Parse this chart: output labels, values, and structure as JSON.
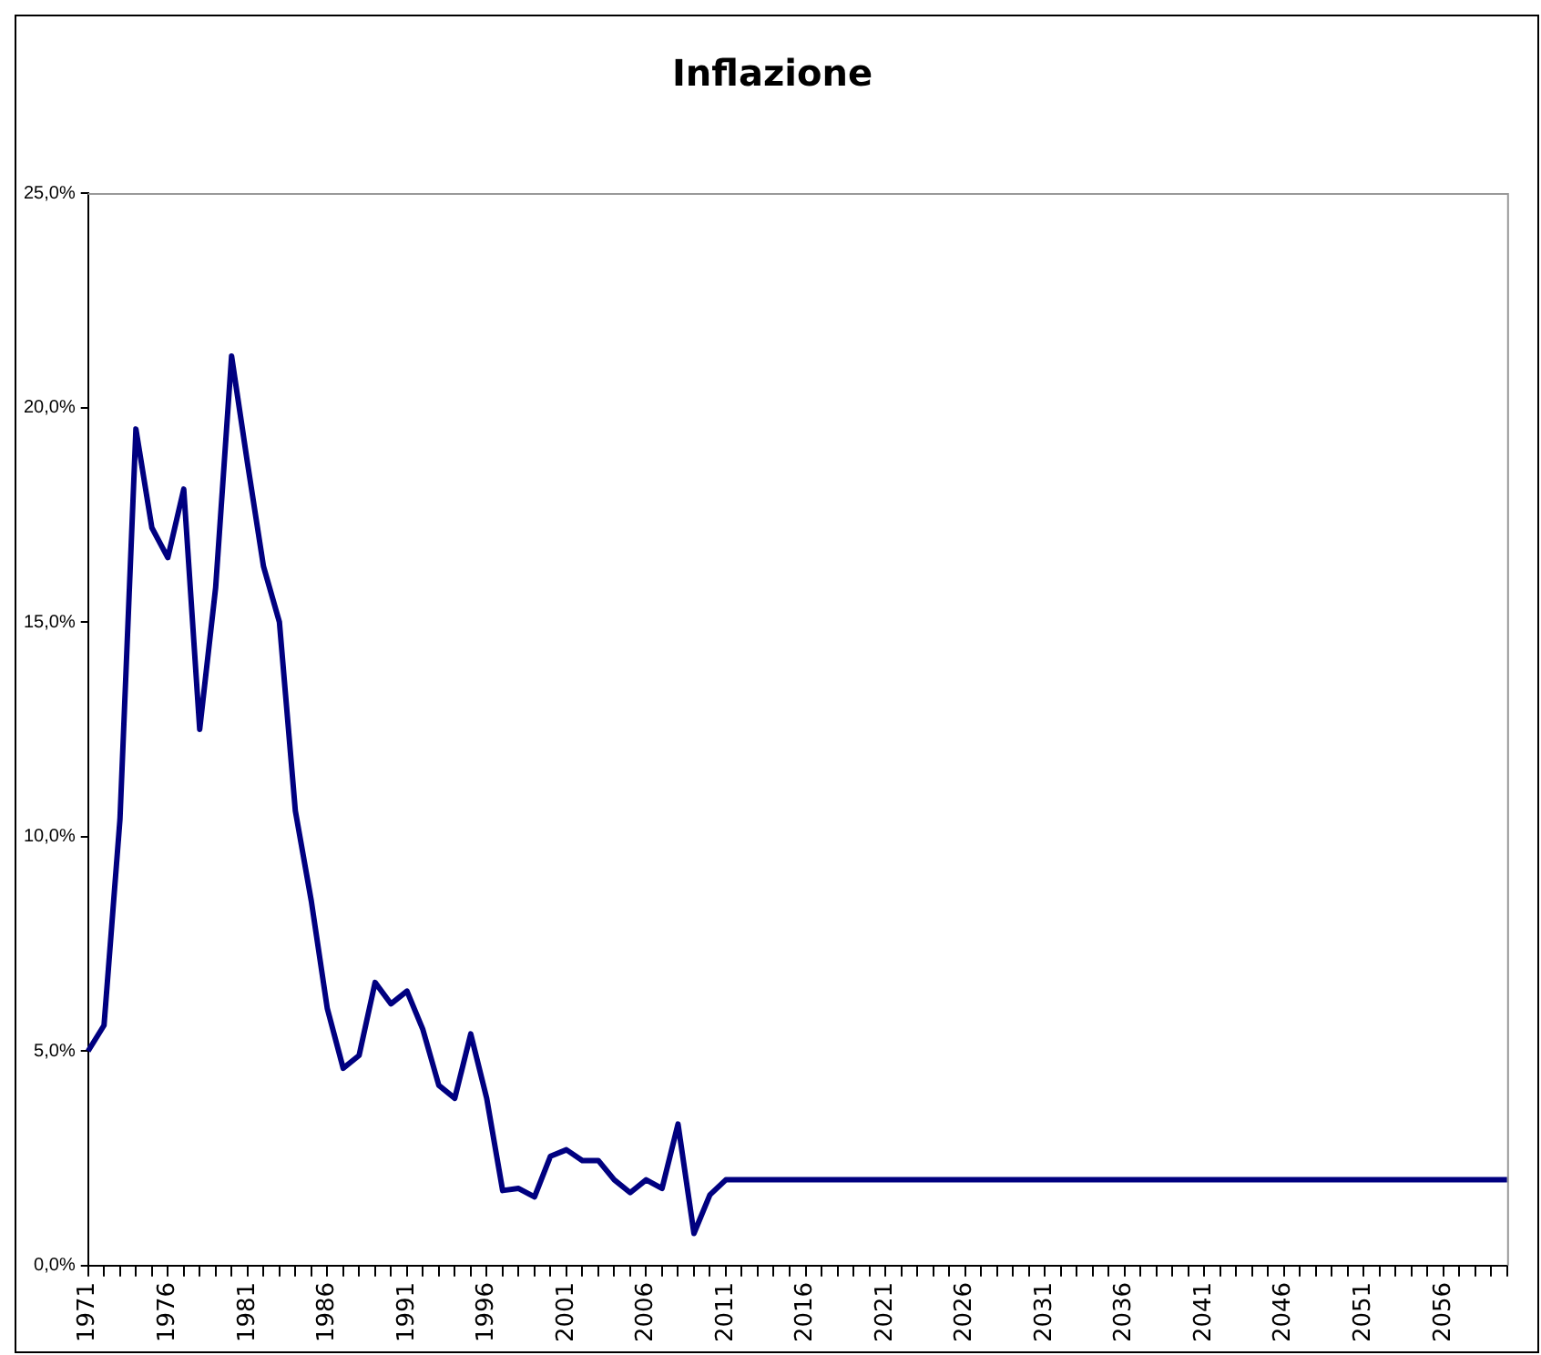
{
  "chart_data": {
    "type": "line",
    "title": "Inflazione",
    "categories": [
      "1971",
      null,
      null,
      null,
      null,
      "1976",
      null,
      null,
      null,
      null,
      "1981",
      null,
      null,
      null,
      null,
      "1986",
      null,
      null,
      null,
      null,
      "1991",
      null,
      null,
      null,
      null,
      "1996",
      null,
      null,
      null,
      null,
      "2001",
      null,
      null,
      null,
      null,
      "2006",
      null,
      null,
      null,
      null,
      "2011",
      null,
      null,
      null,
      null,
      "2016",
      null,
      null,
      null,
      null,
      "2021",
      null,
      null,
      null,
      null,
      "2026",
      null,
      null,
      null,
      null,
      "2031",
      null,
      null,
      null,
      null,
      "2036",
      null,
      null,
      null,
      null,
      "2041",
      null,
      null,
      null,
      null,
      "2046",
      null,
      null,
      null,
      null,
      "2051",
      null,
      null,
      null,
      null,
      "2056",
      null,
      null,
      null,
      null
    ],
    "series": [
      {
        "color": "#000080",
        "values": [
          5.0,
          5.6,
          10.4,
          19.5,
          17.2,
          16.5,
          18.1,
          12.5,
          15.8,
          21.2,
          18.7,
          16.3,
          15.0,
          10.6,
          8.5,
          6.0,
          4.6,
          4.9,
          6.6,
          6.1,
          6.4,
          5.5,
          4.2,
          3.9,
          5.4,
          3.9,
          1.75,
          1.8,
          1.6,
          2.55,
          2.7,
          2.45,
          2.45,
          2.0,
          1.7,
          2.0,
          1.8,
          3.3,
          0.75,
          1.65,
          2.0,
          2.0,
          2.0,
          2.0,
          2.0,
          2.0,
          2.0,
          2.0,
          2.0,
          2.0,
          2.0,
          2.0,
          2.0,
          2.0,
          2.0,
          2.0,
          2.0,
          2.0,
          2.0,
          2.0,
          2.0,
          2.0,
          2.0,
          2.0,
          2.0,
          2.0,
          2.0,
          2.0,
          2.0,
          2.0,
          2.0,
          2.0,
          2.0,
          2.0,
          2.0,
          2.0,
          2.0,
          2.0,
          2.0,
          2.0,
          2.0,
          2.0,
          2.0,
          2.0,
          2.0,
          2.0,
          2.0,
          2.0,
          2.0,
          2.0
        ]
      }
    ],
    "ylim": [
      0,
      25
    ],
    "yticks": [
      {
        "value": 0,
        "label": "0,0%"
      },
      {
        "value": 5,
        "label": "5,0%"
      },
      {
        "value": 10,
        "label": "10,0%"
      },
      {
        "value": 15,
        "label": "15,0%"
      },
      {
        "value": 20,
        "label": "20,0%"
      },
      {
        "value": 25,
        "label": "25,0%"
      }
    ],
    "marker": "none",
    "line_style": "solid"
  }
}
